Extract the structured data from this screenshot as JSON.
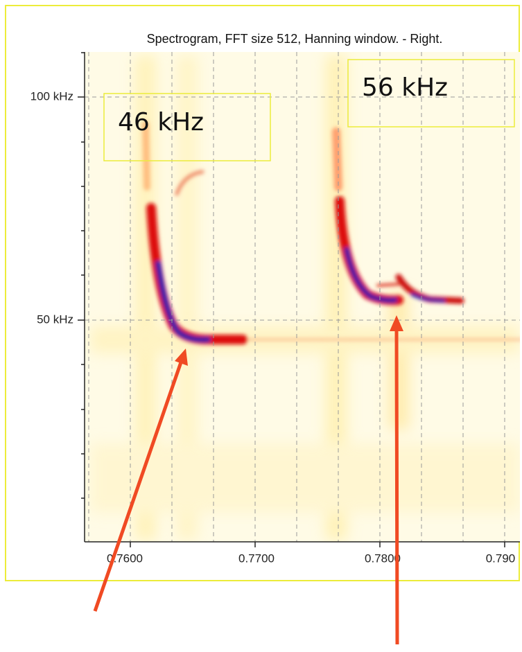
{
  "title": "Spectrogram, FFT size 512, Hanning window. - Right.",
  "y_axis": {
    "ticks": [
      "100 kHz",
      "50 kHz"
    ]
  },
  "x_axis": {
    "ticks": [
      "0.7600",
      "0.7700",
      "0.7800",
      "0.790"
    ]
  },
  "annotations": [
    "46 kHz",
    "56 kHz"
  ]
}
